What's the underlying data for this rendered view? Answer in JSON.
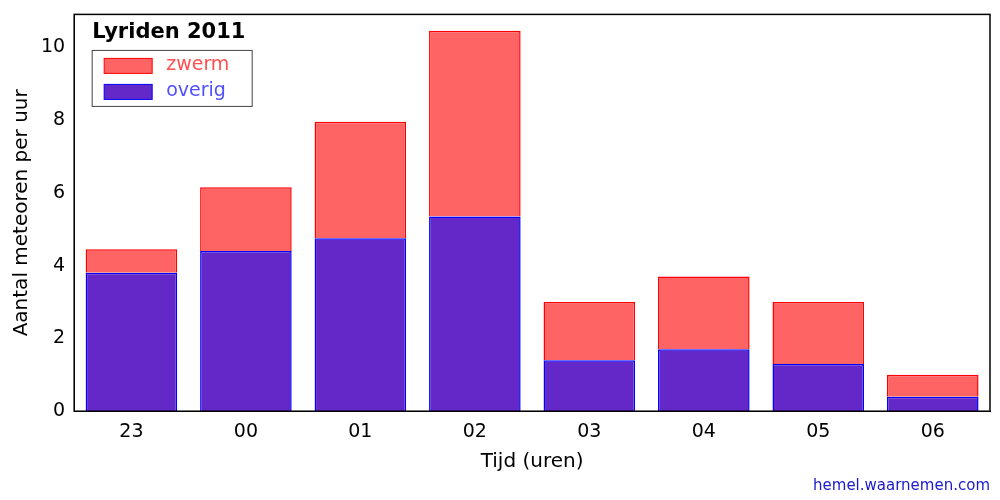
{
  "chart_data": {
    "type": "bar",
    "title": "Lyriden 2011",
    "categories": [
      "23",
      "00",
      "01",
      "02",
      "03",
      "04",
      "05",
      "06"
    ],
    "series": [
      {
        "name": "zwerm",
        "color": "#ff6464",
        "values": [
          0.65,
          1.75,
          3.2,
          5.1,
          1.6,
          2.0,
          1.7,
          0.6
        ]
      },
      {
        "name": "overig",
        "color": "#6428c8",
        "values": [
          3.8,
          4.4,
          4.75,
          5.35,
          1.4,
          1.7,
          1.3,
          0.4
        ]
      }
    ],
    "x_label": "Tijd (uren)",
    "y_label": "Aantal meteoren per uur",
    "credit": "hemel.waarnemen.com",
    "ylim": [
      0,
      10.9
    ],
    "yticks": [
      0,
      2,
      4,
      6,
      8,
      10
    ],
    "stacked": true,
    "grid": false,
    "legend": "top-left"
  }
}
